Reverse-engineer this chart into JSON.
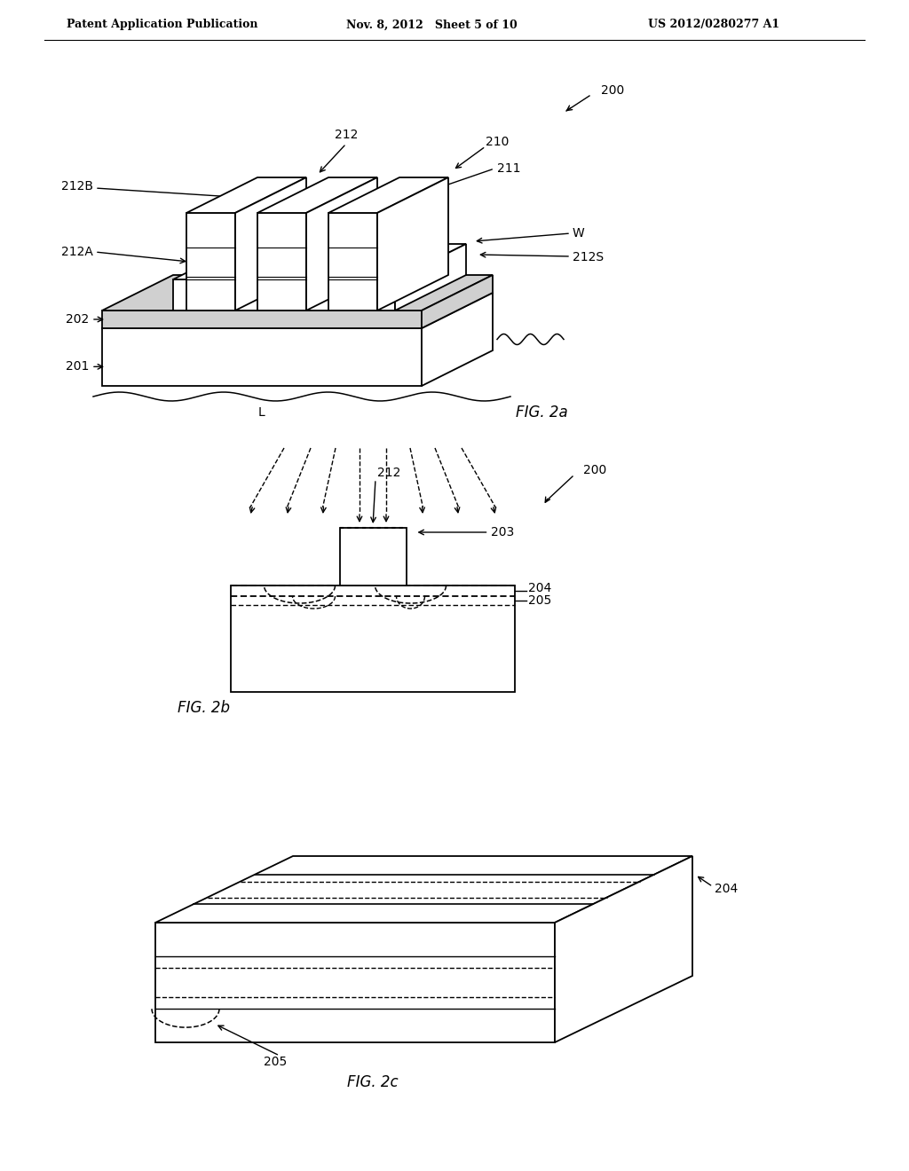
{
  "bg_color": "#ffffff",
  "header_left": "Patent Application Publication",
  "header_mid": "Nov. 8, 2012   Sheet 5 of 10",
  "header_right": "US 2012/0280277 A1",
  "fig2a_label": "FIG. 2a",
  "fig2b_label": "FIG. 2b",
  "fig2c_label": "FIG. 2c",
  "line_color": "#000000",
  "lw": 1.3,
  "fs": 10
}
